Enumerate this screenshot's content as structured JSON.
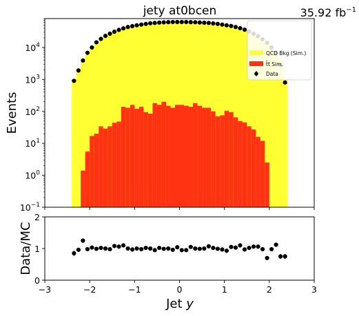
{
  "chart_data": [
    {
      "type": "area",
      "title": "jety  at0bcen",
      "lumi_label": "35.92 fb",
      "lumi_superscript": "−1",
      "ylabel": "Events",
      "xlabel": "",
      "yscale": "log",
      "xlim": [
        -3,
        3
      ],
      "ylim": [
        0.1,
        80000
      ],
      "bins": {
        "start": -2.4,
        "end": 2.4,
        "count": 48,
        "width": 0.1
      },
      "yticks": [
        {
          "mantissa": "10",
          "exp": "−1",
          "value": 0.1
        },
        {
          "mantissa": "10",
          "exp": "0",
          "value": 1
        },
        {
          "mantissa": "10",
          "exp": "1",
          "value": 10
        },
        {
          "mantissa": "10",
          "exp": "2",
          "value": 100
        },
        {
          "mantissa": "10",
          "exp": "3",
          "value": 1000
        },
        {
          "mantissa": "10",
          "exp": "4",
          "value": 10000
        }
      ],
      "legend": [
        "QCD Bkg (Sim.)",
        "t̄t Sim.",
        "Data"
      ],
      "legend_position": "top-right",
      "colors": {
        "qcd": "#ffff33",
        "ttbar": "#ff3311",
        "data": "#000000"
      },
      "series": [
        {
          "name": "QCD Bkg (Sim.)",
          "values": [
            1050,
            2200,
            4200,
            7000,
            10500,
            14500,
            19000,
            23000,
            27500,
            32000,
            36500,
            40500,
            44000,
            47500,
            50500,
            53000,
            55500,
            57500,
            59000,
            60500,
            61500,
            62500,
            63000,
            63500,
            63500,
            63500,
            63000,
            62500,
            61500,
            60500,
            59000,
            57500,
            55500,
            53000,
            50500,
            47500,
            44000,
            40500,
            36500,
            32000,
            27500,
            23000,
            19000,
            14500,
            10500,
            7000,
            4200,
            1050
          ]
        },
        {
          "name": "t̄t Sim.",
          "values": [
            0,
            0,
            1.4,
            5.5,
            17,
            20,
            34,
            29,
            34,
            44,
            48,
            140,
            130,
            160,
            120,
            140,
            95,
            85,
            180,
            160,
            200,
            150,
            130,
            160,
            160,
            150,
            140,
            180,
            150,
            130,
            130,
            100,
            70,
            75,
            105,
            95,
            65,
            50,
            45,
            34,
            27,
            16,
            12,
            2.5,
            0,
            0,
            0,
            0
          ]
        },
        {
          "name": "Data",
          "values": [
            900,
            1900,
            3900,
            6800,
            10000,
            14500,
            18500,
            23000,
            27000,
            31000,
            35500,
            39500,
            43500,
            46500,
            49500,
            52000,
            54500,
            57000,
            58500,
            60000,
            61000,
            62000,
            62500,
            62500,
            62500,
            62500,
            62000,
            61500,
            60500,
            59500,
            58500,
            56500,
            54500,
            52000,
            49500,
            47000,
            43500,
            40000,
            36000,
            31500,
            27000,
            22500,
            18000,
            14000,
            10000,
            6500,
            2800,
            800
          ]
        }
      ]
    },
    {
      "type": "scatter",
      "title": "",
      "xlabel": "Jet",
      "xlabel_var": "y",
      "ylabel": "Data/MC",
      "xlim": [
        -3,
        3
      ],
      "ylim": [
        0,
        2
      ],
      "xticks": [
        "−3",
        "−2",
        "−1",
        "0",
        "1",
        "2",
        "3"
      ],
      "yticks": [
        "0",
        "1",
        "2"
      ],
      "series": [
        {
          "name": "Data/MC",
          "x": [
            -2.35,
            -2.25,
            -2.15,
            -2.05,
            -1.95,
            -1.85,
            -1.75,
            -1.65,
            -1.55,
            -1.45,
            -1.35,
            -1.25,
            -1.15,
            -1.05,
            -0.95,
            -0.85,
            -0.75,
            -0.65,
            -0.55,
            -0.45,
            -0.35,
            -0.25,
            -0.15,
            -0.05,
            0.05,
            0.15,
            0.25,
            0.35,
            0.45,
            0.55,
            0.65,
            0.75,
            0.85,
            0.95,
            1.05,
            1.15,
            1.25,
            1.35,
            1.45,
            1.55,
            1.65,
            1.75,
            1.85,
            1.95,
            2.05,
            2.15,
            2.25,
            2.35
          ],
          "values": [
            0.85,
            0.96,
            1.25,
            0.98,
            1.03,
            0.99,
            1.02,
            1.0,
            0.98,
            1.08,
            1.06,
            1.1,
            1.0,
            0.97,
            1.0,
            0.98,
            1.02,
            1.0,
            0.95,
            1.02,
            0.99,
            1.0,
            0.96,
            1.04,
            0.95,
            0.95,
            1.05,
            1.0,
            0.99,
            1.0,
            1.07,
            1.02,
            0.99,
            0.97,
            0.93,
            1.05,
            1.03,
            1.1,
            0.97,
            1.02,
            1.06,
            1.06,
            0.98,
            0.7,
            0.98,
            1.12,
            0.75,
            0.75
          ],
          "errors": [
            0.08,
            0.06,
            0.06,
            0.04,
            0.04,
            0.04,
            0.03,
            0.03,
            0.03,
            0.03,
            0.03,
            0.03,
            0.03,
            0.03,
            0.03,
            0.03,
            0.03,
            0.03,
            0.03,
            0.03,
            0.03,
            0.03,
            0.03,
            0.03,
            0.03,
            0.03,
            0.03,
            0.03,
            0.03,
            0.03,
            0.03,
            0.03,
            0.03,
            0.03,
            0.03,
            0.03,
            0.03,
            0.03,
            0.03,
            0.03,
            0.03,
            0.03,
            0.04,
            0.05,
            0.06,
            0.07,
            0.08,
            0.08
          ]
        }
      ]
    }
  ]
}
